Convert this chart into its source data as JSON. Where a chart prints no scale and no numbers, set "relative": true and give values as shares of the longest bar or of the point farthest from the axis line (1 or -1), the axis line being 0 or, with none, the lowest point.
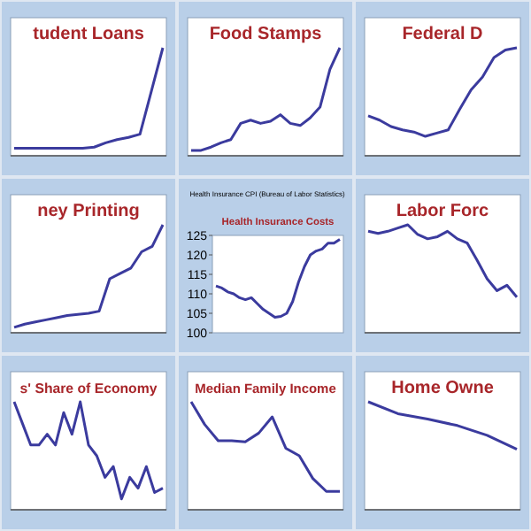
{
  "chart_data": [
    {
      "type": "line",
      "title": "tudent Loans",
      "relative": true,
      "tick_labels": false,
      "color": "#3b3b9e",
      "categories": [
        null,
        null,
        null,
        null,
        null,
        null,
        null,
        null,
        null,
        null,
        null,
        null,
        null,
        null
      ],
      "values": [
        0.07,
        0.07,
        0.07,
        0.07,
        0.07,
        0.07,
        0.07,
        0.08,
        0.12,
        0.15,
        0.17,
        0.2,
        0.6,
        1.0
      ]
    },
    {
      "type": "line",
      "title": "Food Stamps",
      "relative": true,
      "tick_labels": false,
      "color": "#3b3b9e",
      "categories": [
        null,
        null,
        null,
        null,
        null,
        null,
        null,
        null,
        null,
        null,
        null,
        null,
        null,
        null,
        null,
        null
      ],
      "values": [
        0.05,
        0.05,
        0.08,
        0.12,
        0.15,
        0.3,
        0.33,
        0.3,
        0.32,
        0.38,
        0.3,
        0.28,
        0.35,
        0.45,
        0.8,
        1.0
      ]
    },
    {
      "type": "line",
      "title": "Federal D",
      "relative": true,
      "tick_labels": false,
      "color": "#3b3b9e",
      "categories": [
        null,
        null,
        null,
        null,
        null,
        null,
        null,
        null,
        null,
        null,
        null,
        null,
        null,
        null
      ],
      "values": [
        0.37,
        0.33,
        0.27,
        0.24,
        0.22,
        0.18,
        0.21,
        0.24,
        0.43,
        0.61,
        0.73,
        0.91,
        0.98,
        1
      ]
    },
    {
      "type": "line",
      "title": "ney Printing",
      "relative": true,
      "tick_labels": false,
      "color": "#3b3b9e",
      "categories": [
        null,
        null,
        null,
        null,
        null,
        null,
        null,
        null,
        null,
        null,
        null,
        null,
        null,
        null,
        null
      ],
      "values": [
        0.05,
        0.08,
        0.1,
        0.12,
        0.14,
        0.16,
        0.17,
        0.18,
        0.2,
        0.5,
        0.55,
        0.6,
        0.75,
        0.8,
        1.0
      ]
    },
    {
      "type": "line",
      "title": "Health Insurance Costs",
      "subtitle": "Health Insurance CPI (Bureau of Labor Statistics)",
      "tick_labels": "y",
      "color": "#3b3b9e",
      "ylim": [
        100,
        125
      ],
      "yticks": [
        100,
        105,
        110,
        115,
        120,
        125
      ],
      "categories": [
        null,
        null,
        null,
        null,
        null,
        null,
        null,
        null,
        null,
        null,
        null,
        null,
        null,
        null,
        null,
        null,
        null,
        null,
        null,
        null,
        null,
        null
      ],
      "values": [
        112,
        111.5,
        110.5,
        110,
        109,
        108.5,
        109,
        107.5,
        106,
        105,
        104,
        104.2,
        105,
        108,
        113,
        117,
        120,
        121,
        121.5,
        123,
        123,
        124
      ]
    },
    {
      "type": "line",
      "title": "Labor Forc",
      "relative": true,
      "tick_labels": false,
      "color": "#3b3b9e",
      "categories": [
        null,
        null,
        null,
        null,
        null,
        null,
        null,
        null,
        null,
        null,
        null,
        null,
        null,
        null,
        null,
        null
      ],
      "values": [
        0.94,
        0.92,
        0.94,
        0.97,
        1,
        0.91,
        0.87,
        0.89,
        0.94,
        0.87,
        0.83,
        0.67,
        0.5,
        0.39,
        0.44,
        0.33
      ]
    },
    {
      "type": "line",
      "title": "s' Share of Economy",
      "relative": true,
      "tick_labels": false,
      "color": "#3b3b9e",
      "categories": [
        null,
        null,
        null,
        null,
        null,
        null,
        null,
        null,
        null,
        null,
        null,
        null,
        null,
        null,
        null,
        null,
        null,
        null,
        null
      ],
      "values": [
        1,
        0.8,
        0.6,
        0.6,
        0.7,
        0.6,
        0.9,
        0.7,
        1,
        0.6,
        0.5,
        0.3,
        0.4,
        0.1,
        0.3,
        0.2,
        0.4,
        0.16,
        0.2
      ]
    },
    {
      "type": "line",
      "title": "Median Family Income",
      "relative": true,
      "tick_labels": false,
      "color": "#3b3b9e",
      "categories": [
        null,
        null,
        null,
        null,
        null,
        null,
        null,
        null,
        null,
        null,
        null,
        null
      ],
      "values": [
        1,
        0.79,
        0.64,
        0.64,
        0.63,
        0.71,
        0.86,
        0.57,
        0.5,
        0.29,
        0.17,
        0.17
      ]
    },
    {
      "type": "line",
      "title": "Home Owne",
      "relative": true,
      "tick_labels": false,
      "color": "#3b3b9e",
      "categories": [
        null,
        null,
        null,
        null,
        null,
        null
      ],
      "values": [
        1,
        0.89,
        0.84,
        0.78,
        0.69,
        0.56
      ]
    }
  ]
}
